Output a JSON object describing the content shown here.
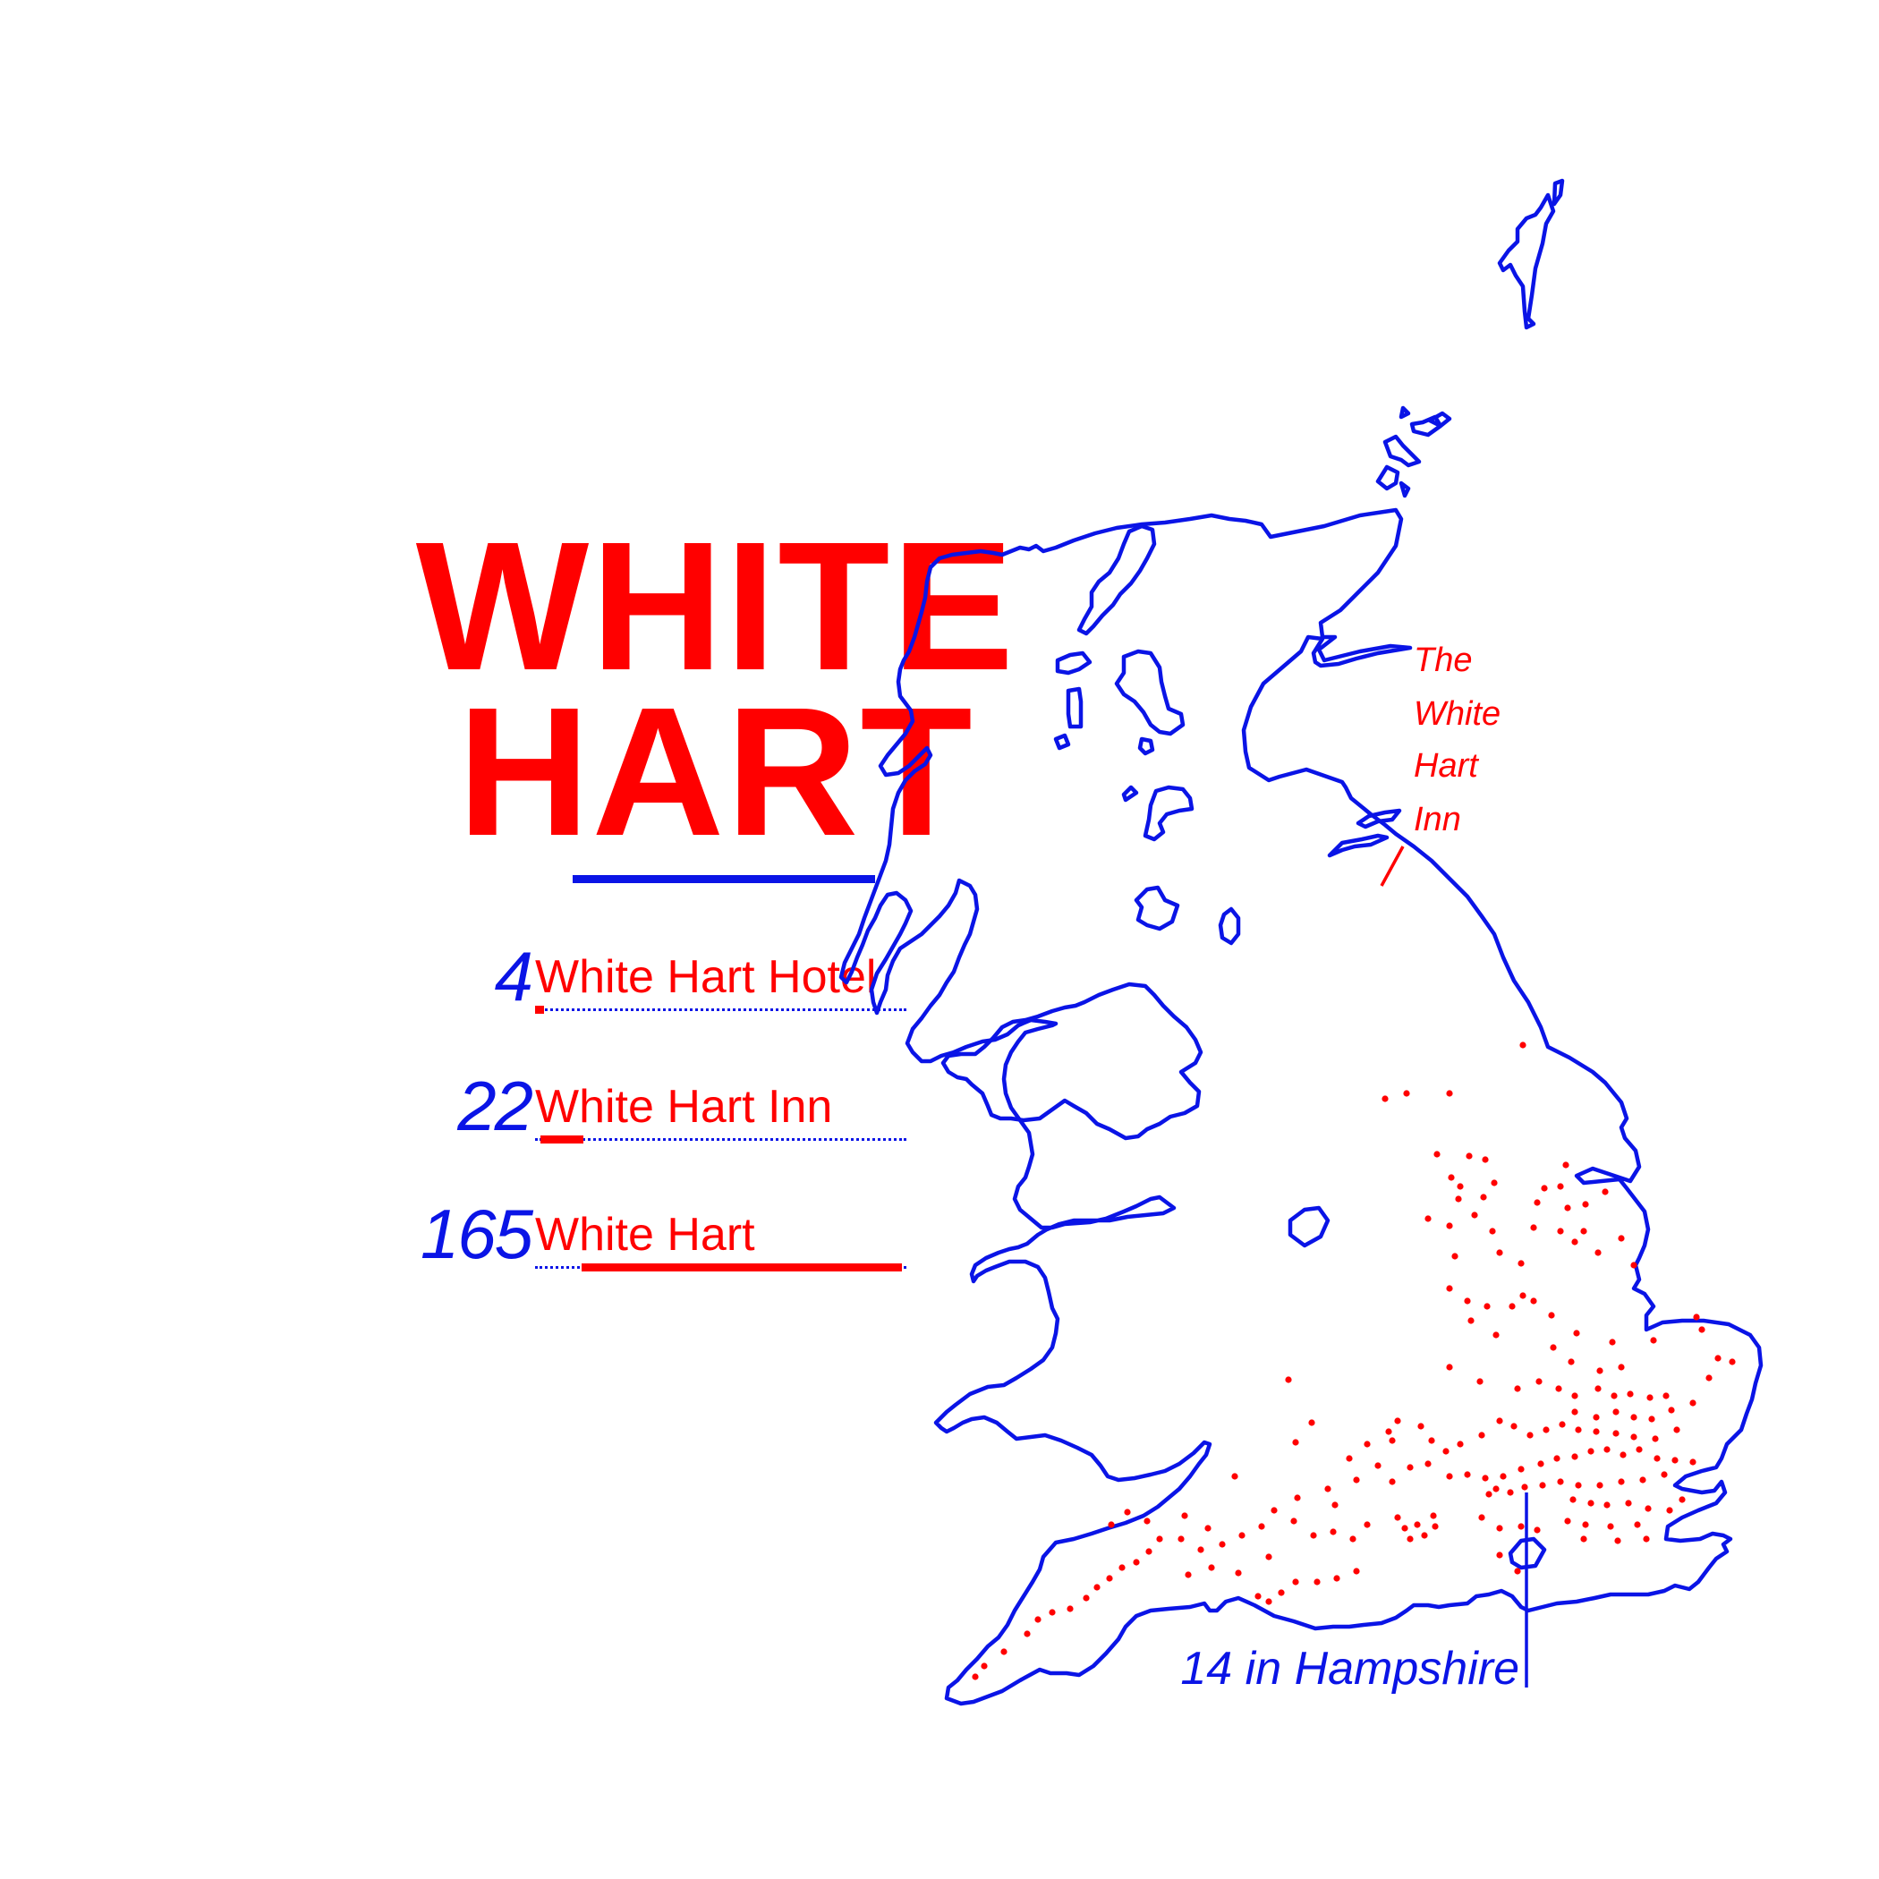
{
  "title": {
    "line1": "WHITE",
    "line2": "HART",
    "rule_color": "#0a14e6",
    "color": "#ff0000"
  },
  "legend": [
    {
      "count": "4",
      "name": "White Hart Hotel",
      "value": 4
    },
    {
      "count": "22",
      "name": "White Hart Inn",
      "value": 22
    },
    {
      "count": "165",
      "name": "White Hart",
      "value": 165
    }
  ],
  "map": {
    "outline_color": "#0a14e6",
    "dot_color": "#ff0000",
    "annotation_inn": [
      "The",
      "White",
      "Hart",
      "Inn"
    ],
    "annotation_hampshire": "14 in Hampshire"
  }
}
